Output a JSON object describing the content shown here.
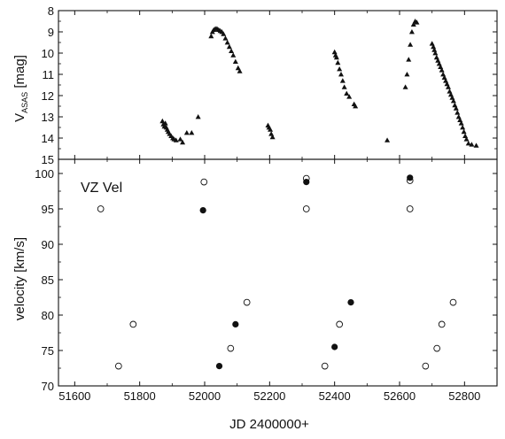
{
  "figure": {
    "xlabel": "JD 2400000+",
    "x_ticks": [
      51600,
      51800,
      52000,
      52200,
      52400,
      52600,
      52800
    ],
    "xlim": [
      51550,
      52900
    ]
  },
  "chart_data": [
    {
      "type": "scatter",
      "ylabel": "V",
      "ylabel_subscript": "ASAS",
      "ylabel_unit": "[mag]",
      "y_inverted": true,
      "ylim": [
        8,
        15
      ],
      "y_ticks": [
        8,
        9,
        10,
        11,
        12,
        13,
        14,
        15
      ],
      "series": [
        {
          "marker": "filled-triangle",
          "points": [
            [
              51870,
              13.2
            ],
            [
              51873,
              13.35
            ],
            [
              51876,
              13.45
            ],
            [
              51879,
              13.3
            ],
            [
              51882,
              13.5
            ],
            [
              51885,
              13.6
            ],
            [
              51888,
              13.7
            ],
            [
              51892,
              13.8
            ],
            [
              51897,
              13.9
            ],
            [
              51902,
              14.0
            ],
            [
              51906,
              14.05
            ],
            [
              51912,
              14.1
            ],
            [
              51925,
              14.05
            ],
            [
              51932,
              14.2
            ],
            [
              51945,
              13.75
            ],
            [
              51960,
              13.75
            ],
            [
              51980,
              13.0
            ],
            [
              52020,
              9.2
            ],
            [
              52024,
              9.0
            ],
            [
              52028,
              8.9
            ],
            [
              52033,
              8.85
            ],
            [
              52038,
              8.85
            ],
            [
              52043,
              8.9
            ],
            [
              52048,
              8.95
            ],
            [
              52053,
              9.0
            ],
            [
              52058,
              9.1
            ],
            [
              52064,
              9.3
            ],
            [
              52070,
              9.5
            ],
            [
              52076,
              9.7
            ],
            [
              52082,
              9.9
            ],
            [
              52088,
              10.1
            ],
            [
              52095,
              10.4
            ],
            [
              52103,
              10.7
            ],
            [
              52108,
              10.85
            ],
            [
              52195,
              13.4
            ],
            [
              52198,
              13.5
            ],
            [
              52202,
              13.6
            ],
            [
              52205,
              13.8
            ],
            [
              52209,
              13.95
            ],
            [
              52400,
              9.95
            ],
            [
              52403,
              10.1
            ],
            [
              52406,
              10.2
            ],
            [
              52410,
              10.45
            ],
            [
              52415,
              10.75
            ],
            [
              52420,
              11.0
            ],
            [
              52425,
              11.3
            ],
            [
              52430,
              11.6
            ],
            [
              52437,
              11.9
            ],
            [
              52445,
              12.05
            ],
            [
              52460,
              12.4
            ],
            [
              52464,
              12.5
            ],
            [
              52562,
              14.1
            ],
            [
              52618,
              11.6
            ],
            [
              52623,
              11.0
            ],
            [
              52628,
              10.3
            ],
            [
              52633,
              9.6
            ],
            [
              52638,
              9.0
            ],
            [
              52643,
              8.65
            ],
            [
              52648,
              8.5
            ],
            [
              52653,
              8.55
            ],
            [
              52700,
              9.55
            ],
            [
              52704,
              9.7
            ],
            [
              52707,
              9.85
            ],
            [
              52710,
              10.0
            ],
            [
              52714,
              10.2
            ],
            [
              52718,
              10.35
            ],
            [
              52722,
              10.5
            ],
            [
              52726,
              10.65
            ],
            [
              52730,
              10.8
            ],
            [
              52734,
              11.0
            ],
            [
              52738,
              11.15
            ],
            [
              52742,
              11.3
            ],
            [
              52746,
              11.45
            ],
            [
              52750,
              11.6
            ],
            [
              52754,
              11.8
            ],
            [
              52758,
              11.95
            ],
            [
              52762,
              12.1
            ],
            [
              52766,
              12.25
            ],
            [
              52770,
              12.45
            ],
            [
              52774,
              12.6
            ],
            [
              52778,
              12.8
            ],
            [
              52782,
              13.0
            ],
            [
              52786,
              13.15
            ],
            [
              52790,
              13.3
            ],
            [
              52794,
              13.5
            ],
            [
              52798,
              13.7
            ],
            [
              52802,
              13.9
            ],
            [
              52806,
              14.05
            ],
            [
              52812,
              14.25
            ],
            [
              52822,
              14.3
            ],
            [
              52836,
              14.35
            ]
          ]
        }
      ]
    },
    {
      "type": "scatter",
      "annotation": "VZ Vel",
      "ylabel": "velocity [km/s]",
      "ylim": [
        70,
        102
      ],
      "y_ticks": [
        70,
        75,
        80,
        85,
        90,
        95,
        100
      ],
      "series": [
        {
          "marker": "open-circle",
          "points": [
            [
              51680,
              95.0
            ],
            [
              51735,
              72.8
            ],
            [
              51780,
              78.7
            ],
            [
              51998,
              98.8
            ],
            [
              52080,
              75.3
            ],
            [
              52130,
              81.8
            ],
            [
              52313,
              99.3
            ],
            [
              52313,
              95.0
            ],
            [
              52370,
              72.8
            ],
            [
              52415,
              78.7
            ],
            [
              52632,
              99.0
            ],
            [
              52632,
              95.0
            ],
            [
              52680,
              72.8
            ],
            [
              52715,
              75.3
            ],
            [
              52730,
              78.7
            ],
            [
              52765,
              81.8
            ]
          ]
        },
        {
          "marker": "filled-circle",
          "points": [
            [
              51995,
              94.8
            ],
            [
              52045,
              72.8
            ],
            [
              52095,
              78.7
            ],
            [
              52313,
              98.8
            ],
            [
              52400,
              75.5
            ],
            [
              52450,
              81.8
            ],
            [
              52632,
              99.4
            ]
          ]
        }
      ]
    }
  ]
}
